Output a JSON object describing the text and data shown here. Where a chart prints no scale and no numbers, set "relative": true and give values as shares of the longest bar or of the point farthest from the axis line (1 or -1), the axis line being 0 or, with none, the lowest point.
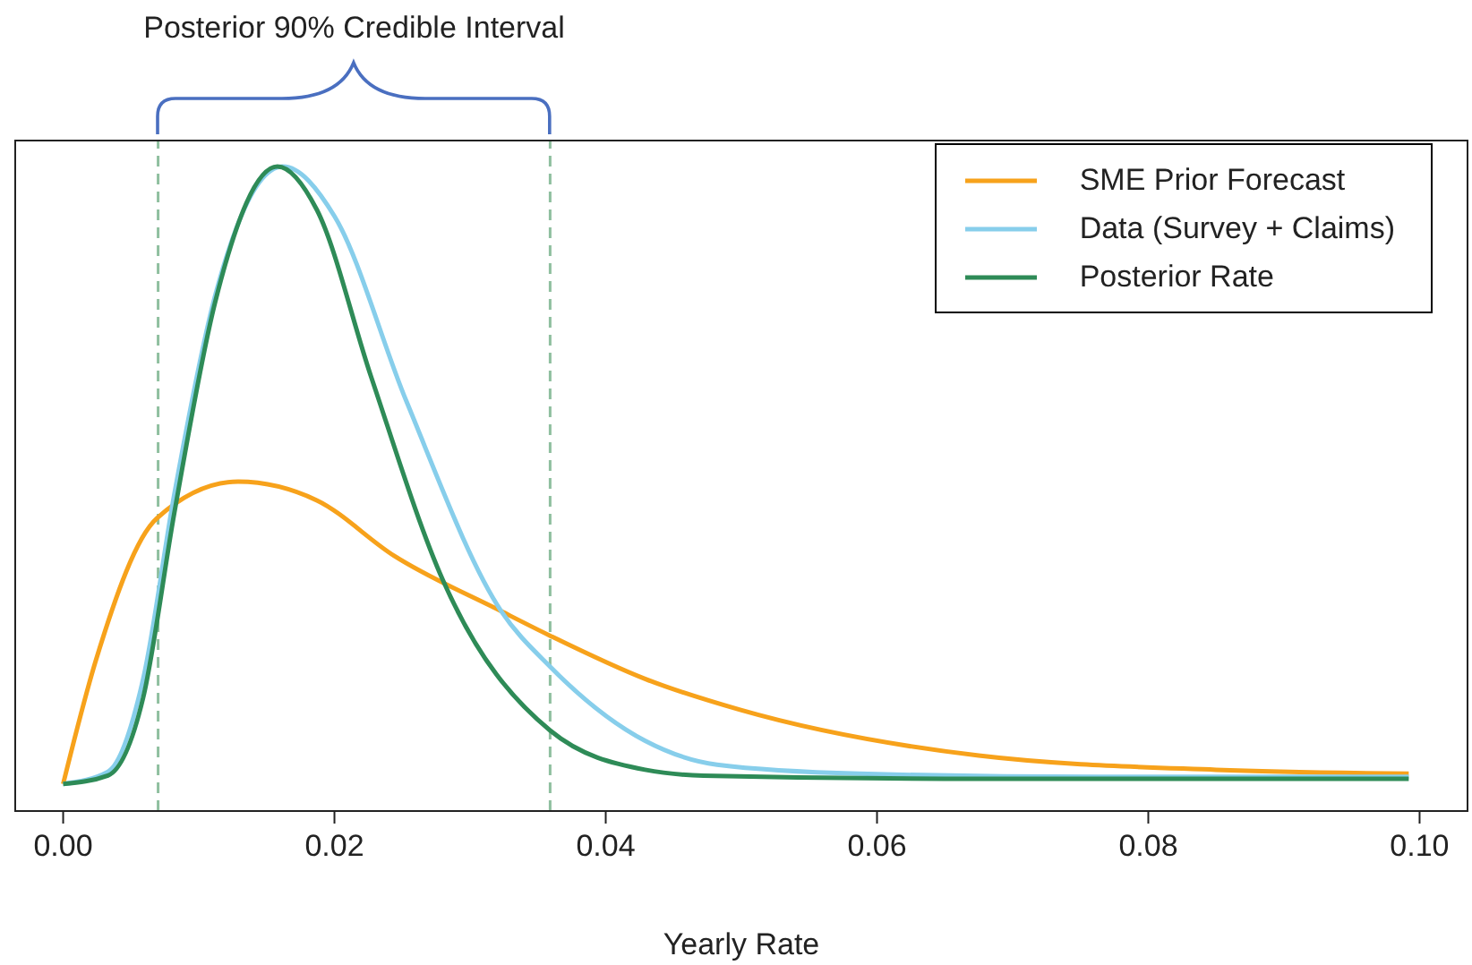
{
  "chart_data": {
    "type": "line",
    "relative": true,
    "xlabel": "Yearly Rate",
    "xlim": [
      -0.0036,
      0.1036
    ],
    "xticks": [
      {
        "value": 0,
        "label": "0.00"
      },
      {
        "value": 0.02,
        "label": "0.02"
      },
      {
        "value": 0.04,
        "label": "0.04"
      },
      {
        "value": 0.06,
        "label": "0.06"
      },
      {
        "value": 0.08,
        "label": "0.08"
      },
      {
        "value": 0.1,
        "label": "0.10"
      }
    ],
    "series": [
      {
        "name": "SME Prior Forecast",
        "color": "#f7a21b",
        "x": [
          0,
          0.0024,
          0.0069,
          0.0129,
          0.0187,
          0.0244,
          0.0323,
          0.0359,
          0.0429,
          0.0499,
          0.0675,
          0.085,
          0.0992
        ],
        "values": [
          0.042,
          0.233,
          0.454,
          0.511,
          0.482,
          0.396,
          0.31,
          0.272,
          0.205,
          0.157,
          0.086,
          0.064,
          0.058
        ]
      },
      {
        "name": "Data (Survey + Claims)",
        "color": "#87ceeb",
        "x": [
          0,
          0.0033,
          0.0059,
          0.0082,
          0.0112,
          0.0162,
          0.02,
          0.0253,
          0.0323,
          0.0359,
          0.0429,
          0.0482,
          0.0587,
          0.0763,
          0.0992
        ],
        "values": [
          0.042,
          0.061,
          0.205,
          0.492,
          0.799,
          1,
          0.923,
          0.636,
          0.31,
          0.224,
          0.109,
          0.072,
          0.058,
          0.053,
          0.053
        ]
      },
      {
        "name": "Posterior Rate",
        "color": "#2e8b57",
        "x": [
          0,
          0.0033,
          0.0059,
          0.0082,
          0.0112,
          0.0158,
          0.0187,
          0.0227,
          0.028,
          0.0359,
          0.0429,
          0.0472,
          0.0675,
          0.0992
        ],
        "values": [
          0.042,
          0.055,
          0.176,
          0.463,
          0.789,
          1,
          0.933,
          0.674,
          0.358,
          0.125,
          0.064,
          0.055,
          0.05,
          0.05
        ]
      }
    ],
    "ref_lines": [
      {
        "axis": "x",
        "value": 0.007,
        "color": "#8fbf9f",
        "line_style": "dashed"
      },
      {
        "axis": "x",
        "value": 0.0359,
        "color": "#8fbf9f",
        "line_style": "dashed"
      }
    ],
    "annotations": [
      "Posterior 90% Credible Interval"
    ],
    "legend": "top right",
    "marker": "none",
    "line_style": "solid",
    "grid": false
  }
}
